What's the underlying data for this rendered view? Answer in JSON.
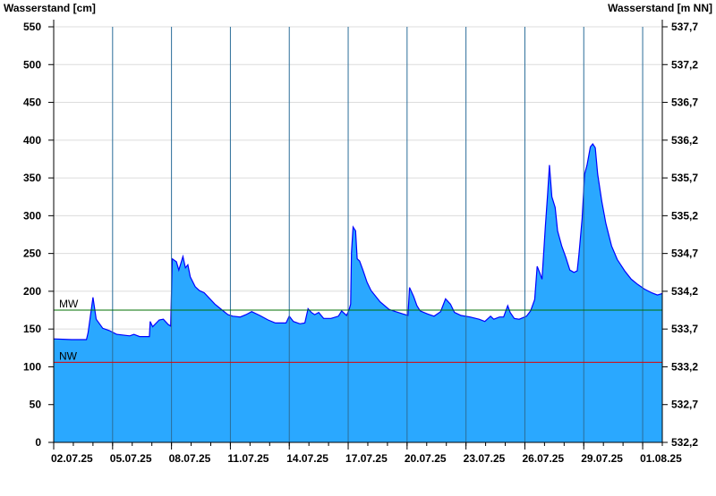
{
  "chart_data": {
    "type": "area",
    "ylabel": "Wasserstand [cm]",
    "ylabel_right": "Wasserstand [m NN]",
    "ylim": [
      0,
      550
    ],
    "yticks": [
      0,
      50,
      100,
      150,
      200,
      250,
      300,
      350,
      400,
      450,
      500,
      550
    ],
    "yticks_right": [
      "532,2",
      "532,7",
      "533,2",
      "533,7",
      "534,2",
      "534,7",
      "535,2",
      "535,7",
      "536,2",
      "536,7",
      "537,2",
      "537,7"
    ],
    "xlim": [
      "2025-07-02T00:00",
      "2025-08-02T00:00"
    ],
    "xticks": [
      {
        "t": "2025-07-02T00:00",
        "label": "02.07.25"
      },
      {
        "t": "2025-07-05T00:00",
        "label": "05.07.25"
      },
      {
        "t": "2025-07-08T00:00",
        "label": "08.07.25"
      },
      {
        "t": "2025-07-11T00:00",
        "label": "11.07.25"
      },
      {
        "t": "2025-07-14T00:00",
        "label": "14.07.25"
      },
      {
        "t": "2025-07-17T00:00",
        "label": "17.07.25"
      },
      {
        "t": "2025-07-20T00:00",
        "label": "20.07.25"
      },
      {
        "t": "2025-07-23T00:00",
        "label": "23.07.25"
      },
      {
        "t": "2025-07-26T00:00",
        "label": "26.07.25"
      },
      {
        "t": "2025-07-29T00:00",
        "label": "29.07.25"
      },
      {
        "t": "2025-08-01T00:00",
        "label": "01.08.25"
      }
    ],
    "grid": true,
    "reference_lines": [
      {
        "label": "MW",
        "value": 175,
        "color": "#007000"
      },
      {
        "label": "NW",
        "value": 106,
        "color": "#e00000"
      }
    ],
    "fill_color": "#2aa8ff",
    "line_color": "#0000ff",
    "series": [
      {
        "points": [
          [
            "2025-07-02T00:00",
            137
          ],
          [
            "2025-07-02T22:00",
            136
          ],
          [
            "2025-07-03T16:00",
            136
          ],
          [
            "2025-07-03T18:00",
            145
          ],
          [
            "2025-07-04T00:00",
            192
          ],
          [
            "2025-07-04T04:00",
            163
          ],
          [
            "2025-07-04T12:00",
            151
          ],
          [
            "2025-07-04T20:00",
            148
          ],
          [
            "2025-07-05T05:00",
            143
          ],
          [
            "2025-07-05T21:00",
            141
          ],
          [
            "2025-07-06T02:00",
            143
          ],
          [
            "2025-07-06T09:00",
            140
          ],
          [
            "2025-07-06T21:00",
            140
          ],
          [
            "2025-07-06T22:00",
            160
          ],
          [
            "2025-07-07T01:00",
            153
          ],
          [
            "2025-07-07T09:00",
            162
          ],
          [
            "2025-07-07T14:00",
            163
          ],
          [
            "2025-07-07T20:00",
            156
          ],
          [
            "2025-07-07T23:00",
            154
          ],
          [
            "2025-07-08T01:00",
            243
          ],
          [
            "2025-07-08T06:00",
            239
          ],
          [
            "2025-07-08T09:00",
            228
          ],
          [
            "2025-07-08T14:00",
            246
          ],
          [
            "2025-07-08T17:00",
            231
          ],
          [
            "2025-07-08T20:00",
            235
          ],
          [
            "2025-07-08T23:00",
            219
          ],
          [
            "2025-07-09T05:00",
            206
          ],
          [
            "2025-07-09T10:00",
            201
          ],
          [
            "2025-07-09T16:00",
            198
          ],
          [
            "2025-07-10T05:00",
            183
          ],
          [
            "2025-07-10T14:00",
            175
          ],
          [
            "2025-07-10T21:00",
            169
          ],
          [
            "2025-07-11T03:00",
            167
          ],
          [
            "2025-07-11T12:00",
            166
          ],
          [
            "2025-07-11T19:00",
            169
          ],
          [
            "2025-07-12T02:00",
            173
          ],
          [
            "2025-07-12T12:00",
            168
          ],
          [
            "2025-07-12T22:00",
            162
          ],
          [
            "2025-07-13T07:00",
            158
          ],
          [
            "2025-07-13T20:00",
            158
          ],
          [
            "2025-07-14T00:00",
            167
          ],
          [
            "2025-07-14T05:00",
            160
          ],
          [
            "2025-07-14T13:00",
            157
          ],
          [
            "2025-07-14T19:00",
            158
          ],
          [
            "2025-07-14T23:00",
            177
          ],
          [
            "2025-07-15T03:00",
            172
          ],
          [
            "2025-07-15T07:00",
            169
          ],
          [
            "2025-07-15T12:00",
            172
          ],
          [
            "2025-07-15T18:00",
            164
          ],
          [
            "2025-07-16T03:00",
            164
          ],
          [
            "2025-07-16T12:00",
            167
          ],
          [
            "2025-07-16T16:00",
            174
          ],
          [
            "2025-07-16T22:00",
            168
          ],
          [
            "2025-07-17T01:00",
            175
          ],
          [
            "2025-07-17T03:00",
            183
          ],
          [
            "2025-07-17T04:00",
            251
          ],
          [
            "2025-07-17T06:00",
            285
          ],
          [
            "2025-07-17T09:00",
            280
          ],
          [
            "2025-07-17T11:00",
            243
          ],
          [
            "2025-07-17T14:00",
            240
          ],
          [
            "2025-07-17T18:00",
            228
          ],
          [
            "2025-07-17T23:00",
            212
          ],
          [
            "2025-07-18T04:00",
            201
          ],
          [
            "2025-07-18T15:00",
            186
          ],
          [
            "2025-07-19T02:00",
            176
          ],
          [
            "2025-07-19T10:00",
            173
          ],
          [
            "2025-07-19T19:00",
            170
          ],
          [
            "2025-07-20T01:00",
            168
          ],
          [
            "2025-07-20T03:00",
            205
          ],
          [
            "2025-07-20T08:00",
            193
          ],
          [
            "2025-07-20T12:00",
            181
          ],
          [
            "2025-07-20T16:00",
            174
          ],
          [
            "2025-07-21T01:00",
            170
          ],
          [
            "2025-07-21T09:00",
            167
          ],
          [
            "2025-07-21T17:00",
            173
          ],
          [
            "2025-07-21T23:00",
            190
          ],
          [
            "2025-07-22T05:00",
            183
          ],
          [
            "2025-07-22T10:00",
            172
          ],
          [
            "2025-07-22T18:00",
            168
          ],
          [
            "2025-07-23T05:00",
            166
          ],
          [
            "2025-07-23T16:00",
            163
          ],
          [
            "2025-07-23T23:00",
            160
          ],
          [
            "2025-07-24T06:00",
            167
          ],
          [
            "2025-07-24T10:00",
            163
          ],
          [
            "2025-07-24T17:00",
            166
          ],
          [
            "2025-07-24T22:00",
            166
          ],
          [
            "2025-07-25T03:00",
            181
          ],
          [
            "2025-07-25T06:00",
            172
          ],
          [
            "2025-07-25T11:00",
            164
          ],
          [
            "2025-07-25T17:00",
            163
          ],
          [
            "2025-07-26T02:00",
            167
          ],
          [
            "2025-07-26T07:00",
            174
          ],
          [
            "2025-07-26T12:00",
            189
          ],
          [
            "2025-07-26T15:00",
            233
          ],
          [
            "2025-07-26T18:00",
            225
          ],
          [
            "2025-07-26T21:00",
            216
          ],
          [
            "2025-07-27T01:00",
            285
          ],
          [
            "2025-07-27T04:00",
            331
          ],
          [
            "2025-07-27T06:00",
            367
          ],
          [
            "2025-07-27T09:00",
            325
          ],
          [
            "2025-07-27T13:00",
            311
          ],
          [
            "2025-07-27T16:00",
            280
          ],
          [
            "2025-07-27T21:00",
            260
          ],
          [
            "2025-07-28T02:00",
            245
          ],
          [
            "2025-07-28T07:00",
            228
          ],
          [
            "2025-07-28T12:00",
            225
          ],
          [
            "2025-07-28T16:00",
            227
          ],
          [
            "2025-07-28T18:00",
            248
          ],
          [
            "2025-07-28T22:00",
            296
          ],
          [
            "2025-07-29T01:00",
            355
          ],
          [
            "2025-07-29T04:00",
            367
          ],
          [
            "2025-07-29T08:00",
            391
          ],
          [
            "2025-07-29T11:00",
            395
          ],
          [
            "2025-07-29T14:00",
            390
          ],
          [
            "2025-07-29T17:00",
            355
          ],
          [
            "2025-07-29T22:00",
            319
          ],
          [
            "2025-07-30T03:00",
            290
          ],
          [
            "2025-07-30T10:00",
            260
          ],
          [
            "2025-07-30T17:00",
            242
          ],
          [
            "2025-07-31T02:00",
            227
          ],
          [
            "2025-07-31T10:00",
            216
          ],
          [
            "2025-07-31T18:00",
            209
          ],
          [
            "2025-08-01T02:00",
            203
          ],
          [
            "2025-08-01T11:00",
            198
          ],
          [
            "2025-08-01T18:00",
            195
          ],
          [
            "2025-08-02T00:00",
            197
          ]
        ]
      }
    ]
  }
}
